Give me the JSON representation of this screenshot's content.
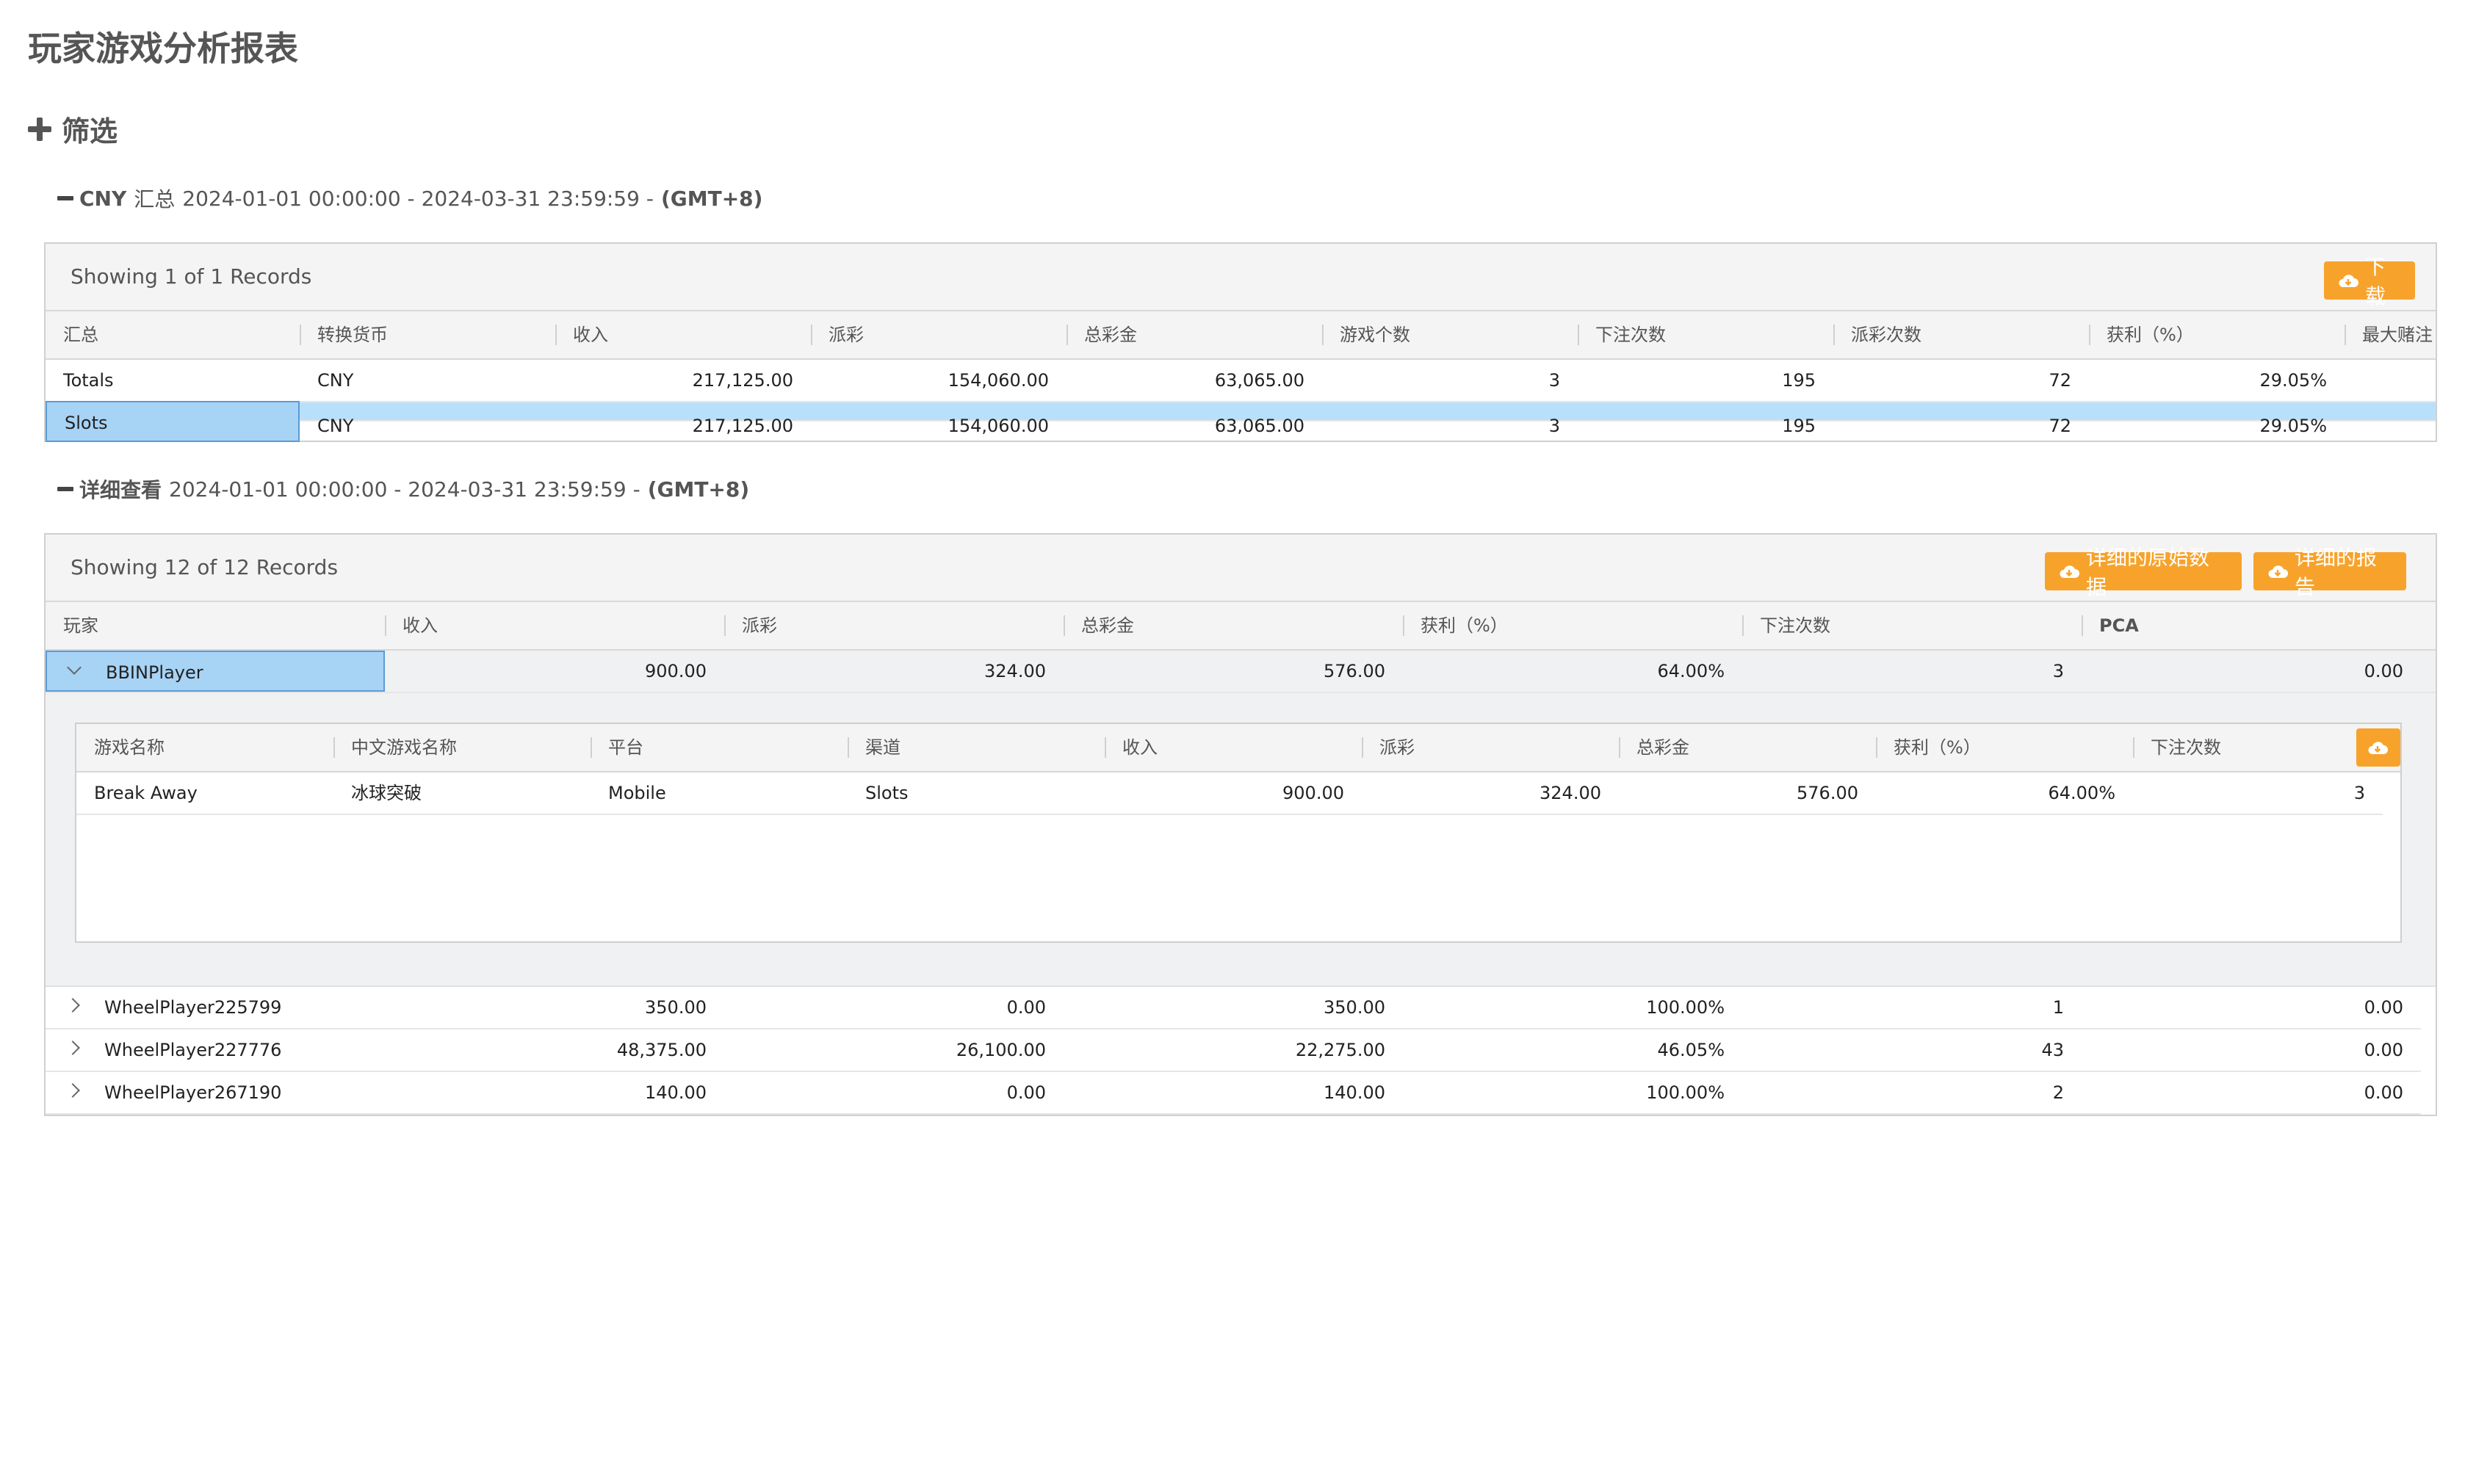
{
  "page_title": "玩家游戏分析报表",
  "filter": {
    "label": "筛选",
    "icon": "plus-icon"
  },
  "summary": {
    "currency": "CNY",
    "label": "汇总",
    "range": "2024-01-01 00:00:00 - 2024-03-31 23:59:59 -",
    "timezone": "(GMT+8)",
    "records_text": "Showing 1 of 1 Records",
    "download_button": "下载",
    "columns": [
      "汇总",
      "转换货币",
      "收入",
      "派彩",
      "总彩金",
      "游戏个数",
      "下注次数",
      "派彩次数",
      "获利（%）",
      "最大赌注"
    ],
    "totals_row": [
      "Totals",
      "CNY",
      "217,125.00",
      "154,060.00",
      "63,065.00",
      "3",
      "195",
      "72",
      "29.05%"
    ],
    "partial_row": [
      "Slots",
      "CNY",
      "217,125.00",
      "154,060.00",
      "63,065.00",
      "3",
      "195",
      "72",
      "29.05%"
    ]
  },
  "detail": {
    "label": "详细查看",
    "range": "2024-01-01 00:00:00 - 2024-03-31 23:59:59 -",
    "timezone": "(GMT+8)",
    "records_text": "Showing 12 of 12 Records",
    "raw_data_button": "详细的原始数据",
    "report_button": "详细的报告",
    "columns": [
      "玩家",
      "收入",
      "派彩",
      "总彩金",
      "获利（%）",
      "下注次数",
      "PCA"
    ],
    "expanded_player": {
      "values": [
        "BBINPlayer",
        "900.00",
        "324.00",
        "576.00",
        "64.00%",
        "3",
        "0.00"
      ],
      "games": {
        "columns": [
          "游戏名称",
          "中文游戏名称",
          "平台",
          "渠道",
          "收入",
          "派彩",
          "总彩金",
          "获利（%）",
          "下注次数"
        ],
        "rows": [
          [
            "Break Away",
            "冰球突破",
            "Mobile",
            "Slots",
            "900.00",
            "324.00",
            "576.00",
            "64.00%",
            "3"
          ]
        ]
      }
    },
    "players": [
      [
        "WheelPlayer225799",
        "350.00",
        "0.00",
        "350.00",
        "100.00%",
        "1",
        "0.00"
      ],
      [
        "WheelPlayer227776",
        "48,375.00",
        "26,100.00",
        "22,275.00",
        "46.05%",
        "43",
        "0.00"
      ],
      [
        "WheelPlayer267190",
        "140.00",
        "0.00",
        "140.00",
        "100.00%",
        "2",
        "0.00"
      ]
    ]
  },
  "colors": {
    "accent": "#f7a32b",
    "selection": "#b9e0fb",
    "header_bg": "#f4f4f4"
  }
}
